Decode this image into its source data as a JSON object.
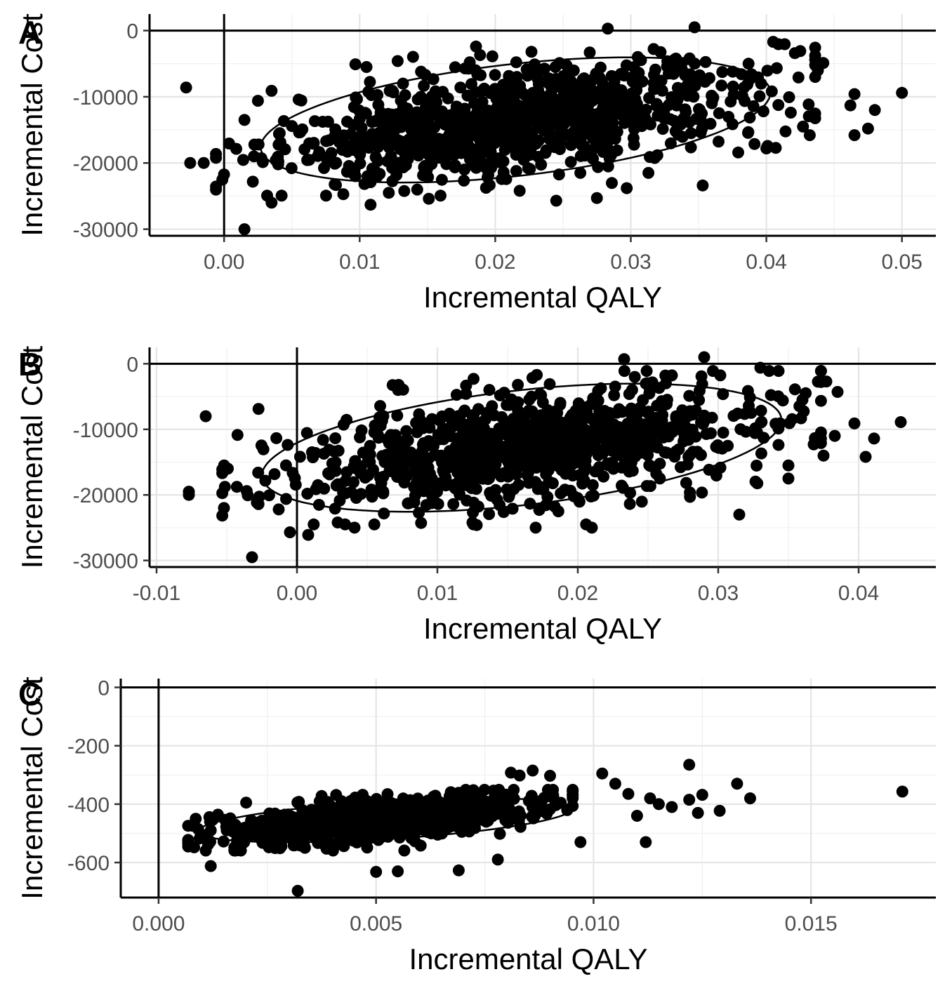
{
  "chart_data": [
    {
      "type": "scatter",
      "panel_label": "A",
      "xlabel": "Incremental QALY",
      "ylabel": "Incremental Cost",
      "xlim": [
        -0.0055,
        0.0525
      ],
      "ylim": [
        -31000,
        2500
      ],
      "x_ticks": [
        0.0,
        0.01,
        0.02,
        0.03,
        0.04,
        0.05
      ],
      "x_tick_labels": [
        "0.00",
        "0.01",
        "0.02",
        "0.03",
        "0.04",
        "0.05"
      ],
      "y_ticks": [
        0,
        -10000,
        -20000,
        -30000
      ],
      "y_tick_labels": [
        "0",
        "-10000",
        "-20000",
        "-30000"
      ],
      "grid": true,
      "reference_lines": {
        "x": 0,
        "y": 0
      },
      "confidence_ellipse": {
        "center_x": 0.0215,
        "center_y": -13500,
        "semi_major_qaly": 0.0188,
        "half_height_cost": 8500,
        "tilt_cost_per_qaly": 220000
      },
      "cloud": {
        "count": 950,
        "mean_x": 0.0215,
        "mean_y": -13500,
        "sd_x": 0.0085,
        "sd_y": 4400,
        "correlation": 0.42,
        "seed": 11
      },
      "outliers": [
        {
          "x": -0.0028,
          "y": -8600
        },
        {
          "x": -0.0025,
          "y": -20000
        },
        {
          "x": -0.0015,
          "y": -20000
        },
        {
          "x": 0.0015,
          "y": -30000
        },
        {
          "x": 0.0035,
          "y": -26000
        },
        {
          "x": 0.0283,
          "y": 300
        },
        {
          "x": 0.0347,
          "y": 500
        },
        {
          "x": 0.0405,
          "y": -1700
        },
        {
          "x": 0.0438,
          "y": -6000
        },
        {
          "x": 0.0442,
          "y": -4900
        },
        {
          "x": 0.0465,
          "y": -9600
        },
        {
          "x": 0.0462,
          "y": -11300
        },
        {
          "x": 0.048,
          "y": -12000
        },
        {
          "x": 0.0475,
          "y": -14800
        },
        {
          "x": 0.0465,
          "y": -15800
        },
        {
          "x": 0.05,
          "y": -9400
        },
        {
          "x": 0.0432,
          "y": -15800
        },
        {
          "x": 0.0427,
          "y": -14500
        },
        {
          "x": 0.0418,
          "y": -12400
        },
        {
          "x": 0.04,
          "y": -17800
        },
        {
          "x": 0.0105,
          "y": -5500
        },
        {
          "x": 0.0035,
          "y": -9100
        },
        {
          "x": 0.0015,
          "y": -13500
        },
        {
          "x": 0.0022,
          "y": -19000
        },
        {
          "x": 0.0108,
          "y": -26300
        },
        {
          "x": 0.0245,
          "y": -25700
        },
        {
          "x": 0.0275,
          "y": -25300
        },
        {
          "x": 0.0297,
          "y": -23800
        },
        {
          "x": 0.0353,
          "y": -23400
        },
        {
          "x": 0.0313,
          "y": -21500
        },
        {
          "x": 0.0425,
          "y": -3100
        },
        {
          "x": 0.0421,
          "y": -3400
        },
        {
          "x": 0.0128,
          "y": -4600
        },
        {
          "x": 0.0151,
          "y": -25400
        },
        {
          "x": 0.0218,
          "y": -24200
        }
      ]
    },
    {
      "type": "scatter",
      "panel_label": "B",
      "xlabel": "Incremental QALY",
      "ylabel": "Incremental Cost",
      "xlim": [
        -0.0105,
        0.0455
      ],
      "ylim": [
        -31000,
        2500
      ],
      "x_ticks": [
        -0.01,
        0.0,
        0.01,
        0.02,
        0.03,
        0.04
      ],
      "x_tick_labels": [
        "-0.01",
        "0.00",
        "0.01",
        "0.02",
        "0.03",
        "0.04"
      ],
      "y_ticks": [
        0,
        -10000,
        -20000,
        -30000
      ],
      "y_tick_labels": [
        "0",
        "-10000",
        "-20000",
        "-30000"
      ],
      "grid": true,
      "reference_lines": {
        "x": 0,
        "y": 0
      },
      "confidence_ellipse": {
        "center_x": 0.016,
        "center_y": -12800,
        "semi_major_qaly": 0.0185,
        "half_height_cost": 8800,
        "tilt_cost_per_qaly": 230000
      },
      "cloud": {
        "count": 950,
        "mean_x": 0.016,
        "mean_y": -12800,
        "sd_x": 0.0082,
        "sd_y": 4500,
        "correlation": 0.45,
        "seed": 23
      },
      "outliers": [
        {
          "x": -0.0065,
          "y": -8000
        },
        {
          "x": -0.0077,
          "y": -19500
        },
        {
          "x": -0.0077,
          "y": -20000
        },
        {
          "x": -0.0052,
          "y": -22000
        },
        {
          "x": -0.0032,
          "y": -29500
        },
        {
          "x": 0.0233,
          "y": 700
        },
        {
          "x": 0.029,
          "y": 1000
        },
        {
          "x": 0.033,
          "y": -600
        },
        {
          "x": 0.0343,
          "y": -1100
        },
        {
          "x": 0.0377,
          "y": -2700
        },
        {
          "x": 0.0385,
          "y": -4300
        },
        {
          "x": 0.036,
          "y": -5500
        },
        {
          "x": 0.0397,
          "y": -9100
        },
        {
          "x": 0.043,
          "y": -8900
        },
        {
          "x": 0.0383,
          "y": -11000
        },
        {
          "x": 0.0368,
          "y": -12300
        },
        {
          "x": 0.0375,
          "y": -14000
        },
        {
          "x": 0.0405,
          "y": -14200
        },
        {
          "x": 0.0411,
          "y": -11400
        },
        {
          "x": 0.035,
          "y": -15500
        },
        {
          "x": 0.035,
          "y": -17500
        },
        {
          "x": -0.0005,
          "y": -25700
        },
        {
          "x": 0.0008,
          "y": -26100
        },
        {
          "x": 0.0315,
          "y": -23000
        },
        {
          "x": 0.021,
          "y": -25000
        },
        {
          "x": 0.017,
          "y": -25000
        },
        {
          "x": 0.0128,
          "y": -24600
        },
        {
          "x": 0.0041,
          "y": -25000
        },
        {
          "x": 0.0029,
          "y": -24200
        },
        {
          "x": 0.0072,
          "y": -4000
        }
      ]
    },
    {
      "type": "scatter",
      "panel_label": "C",
      "xlabel": "Incremental QALY",
      "ylabel": "Incremental Cost",
      "xlim": [
        -0.00087,
        0.01787
      ],
      "ylim": [
        -720,
        30
      ],
      "x_ticks": [
        0.0,
        0.005,
        0.01,
        0.015
      ],
      "x_tick_labels": [
        "0.000",
        "0.005",
        "0.010",
        "0.015"
      ],
      "y_ticks": [
        0,
        -200,
        -400,
        -600
      ],
      "y_tick_labels": [
        "0",
        "-200",
        "-400",
        "-600"
      ],
      "grid": true,
      "reference_lines": {
        "x": 0,
        "y": 0
      },
      "confidence_ellipse": {
        "center_x": 0.0052,
        "center_y": -455,
        "semi_major_qaly": 0.0043,
        "half_height_cost": 65,
        "tilt_cost_per_qaly": 9000
      },
      "cloud": {
        "count": 1000,
        "mean_x": 0.0051,
        "mean_y": -455,
        "sd_x": 0.0017,
        "sd_y": 40,
        "correlation": 0.55,
        "seed": 37
      },
      "outliers": [
        {
          "x": 0.0171,
          "y": -357
        },
        {
          "x": 0.0122,
          "y": -265
        },
        {
          "x": 0.0133,
          "y": -330
        },
        {
          "x": 0.0136,
          "y": -380
        },
        {
          "x": 0.0129,
          "y": -423
        },
        {
          "x": 0.0125,
          "y": -368
        },
        {
          "x": 0.0124,
          "y": -430
        },
        {
          "x": 0.0122,
          "y": -385
        },
        {
          "x": 0.0113,
          "y": -380
        },
        {
          "x": 0.0115,
          "y": -400
        },
        {
          "x": 0.0118,
          "y": -410
        },
        {
          "x": 0.0102,
          "y": -295
        },
        {
          "x": 0.0105,
          "y": -330
        },
        {
          "x": 0.0112,
          "y": -530
        },
        {
          "x": 0.0108,
          "y": -365
        },
        {
          "x": 0.011,
          "y": -440
        },
        {
          "x": 0.0012,
          "y": -612
        },
        {
          "x": 0.0032,
          "y": -697
        },
        {
          "x": 0.0078,
          "y": -590
        },
        {
          "x": 0.0069,
          "y": -627
        },
        {
          "x": 0.0055,
          "y": -630
        },
        {
          "x": 0.005,
          "y": -632
        },
        {
          "x": 0.0012,
          "y": -490
        },
        {
          "x": 0.0097,
          "y": -530
        },
        {
          "x": 0.0081,
          "y": -292
        },
        {
          "x": 0.0083,
          "y": -302
        },
        {
          "x": 0.0086,
          "y": -285
        },
        {
          "x": 0.009,
          "y": -303
        }
      ]
    }
  ]
}
